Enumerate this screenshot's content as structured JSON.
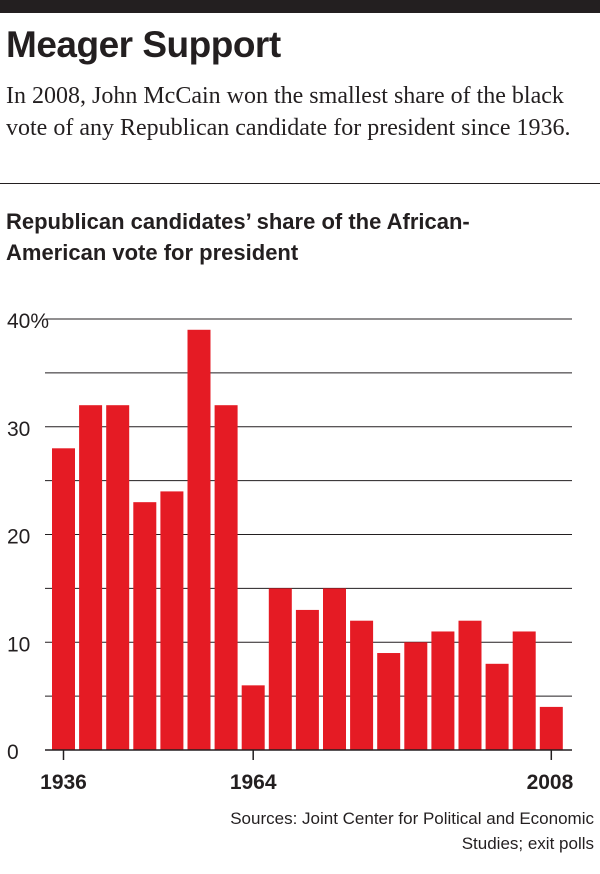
{
  "header": {
    "title": "Meager Support",
    "subtitle": "In 2008, John McCain won the smallest share of the black vote of any Republican candidate for president since 1936."
  },
  "chart_title": "Republican candidates’ share of the African-American vote for president",
  "source": "Sources: Joint Center for Political and Economic Studies; exit polls",
  "colors": {
    "bar": "#e51b24",
    "text": "#231f20",
    "grid": "#231f20"
  },
  "chart_data": {
    "type": "bar",
    "title": "Republican candidates’ share of the African-American vote for president",
    "xlabel": "",
    "ylabel": "",
    "ylim": [
      0,
      40
    ],
    "y_ticks": [
      "40%",
      "30",
      "20",
      "10",
      "0"
    ],
    "x_tick_labels": [
      "1936",
      "1964",
      "2008"
    ],
    "categories": [
      "1936",
      "1940",
      "1944",
      "1948",
      "1952",
      "1956",
      "1960",
      "1964",
      "1968",
      "1972",
      "1976",
      "1980",
      "1984",
      "1988",
      "1992",
      "1996",
      "2000",
      "2004",
      "2008"
    ],
    "values": [
      28,
      32,
      32,
      23,
      24,
      39,
      32,
      6,
      15,
      13,
      15,
      12,
      9,
      10,
      11,
      12,
      8,
      11,
      4
    ],
    "grid": true
  }
}
